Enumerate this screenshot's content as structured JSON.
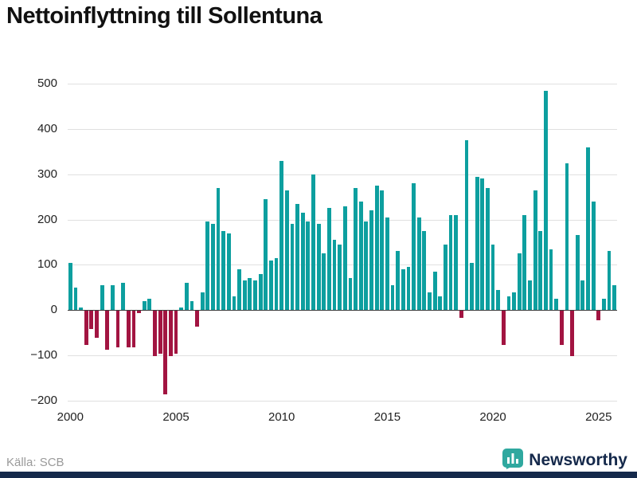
{
  "page": {
    "title": "Nettoinflyttning till Sollentuna"
  },
  "footer": {
    "source": "Källa: SCB",
    "brand": "Newsworthy"
  },
  "colors": {
    "positive": "#0d9f9f",
    "negative": "#a21441",
    "grid": "#e0e0e0",
    "zero_line": "#3c3c3c",
    "accent_bar": "#15294b",
    "brand_text": "#15294b",
    "logo": "#2fa89f"
  },
  "chart_data": {
    "type": "bar",
    "title": "Nettoinflyttning till Sollentuna",
    "frequency": "quarterly",
    "start_year": 2000,
    "values": [
      105,
      50,
      5,
      -75,
      -40,
      -60,
      55,
      -85,
      55,
      -80,
      60,
      -80,
      -80,
      -5,
      20,
      25,
      -100,
      -95,
      -185,
      -100,
      -95,
      5,
      60,
      20,
      -35,
      40,
      195,
      190,
      270,
      175,
      170,
      30,
      90,
      65,
      70,
      65,
      80,
      245,
      110,
      115,
      330,
      265,
      190,
      235,
      215,
      195,
      300,
      190,
      125,
      225,
      155,
      145,
      230,
      70,
      270,
      240,
      195,
      220,
      275,
      265,
      205,
      55,
      130,
      90,
      95,
      280,
      205,
      175,
      40,
      85,
      30,
      145,
      210,
      210,
      -15,
      375,
      105,
      295,
      290,
      270,
      145,
      45,
      -75,
      30,
      40,
      125,
      210,
      65,
      265,
      175,
      485,
      135,
      25,
      -75,
      325,
      -100,
      165,
      65,
      360,
      240,
      -20,
      25,
      130,
      55
    ],
    "x_ticks": [
      2000,
      2005,
      2010,
      2015,
      2020,
      2025
    ],
    "y_ticks": [
      -200,
      -100,
      0,
      100,
      200,
      300,
      400,
      500
    ],
    "ylim": [
      -200,
      500
    ],
    "grid": "horizontal",
    "legend": "none",
    "source": "Källa: SCB"
  }
}
